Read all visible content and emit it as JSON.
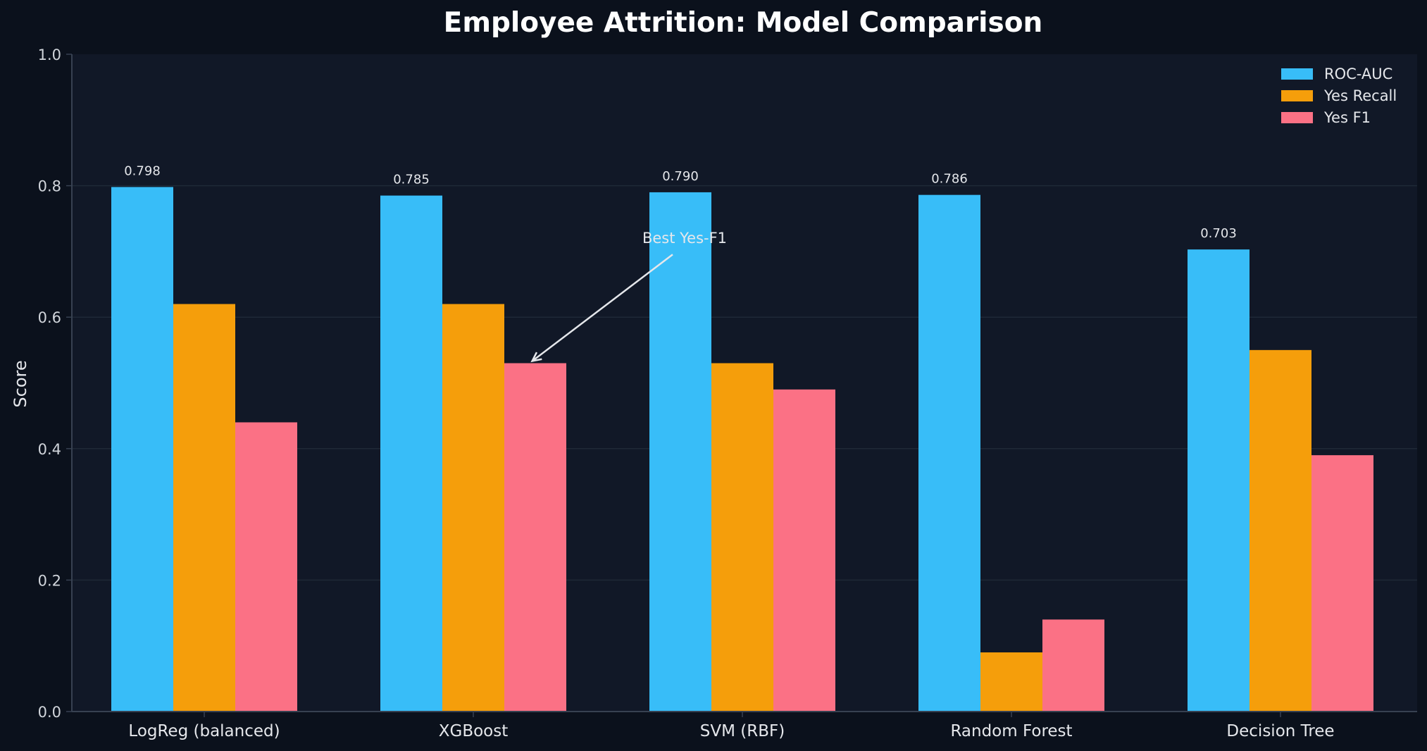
{
  "chart_data": {
    "type": "bar",
    "title": "Employee Attrition: Model Comparison",
    "xlabel": "",
    "ylabel": "Score",
    "ylim": [
      0,
      1.0
    ],
    "yticks": [
      "0.0",
      "0.2",
      "0.4",
      "0.6",
      "0.8",
      "1.0"
    ],
    "categories": [
      "LogReg (balanced)",
      "XGBoost",
      "SVM (RBF)",
      "Random Forest",
      "Decision Tree"
    ],
    "series": [
      {
        "name": "ROC-AUC",
        "color": "#38bdf8",
        "values": [
          0.798,
          0.785,
          0.79,
          0.786,
          0.703
        ],
        "labels": [
          "0.798",
          "0.785",
          "0.790",
          "0.786",
          "0.703"
        ]
      },
      {
        "name": "Yes Recall",
        "color": "#f59e0b",
        "values": [
          0.62,
          0.62,
          0.53,
          0.09,
          0.55
        ]
      },
      {
        "name": "Yes F1",
        "color": "#fb7185",
        "values": [
          0.44,
          0.53,
          0.49,
          0.14,
          0.39
        ]
      }
    ],
    "annotation": {
      "text": "Best Yes-F1",
      "category": "XGBoost",
      "series": "Yes F1",
      "text_y": 0.72
    },
    "grid": true,
    "legend_position": "top-right"
  }
}
